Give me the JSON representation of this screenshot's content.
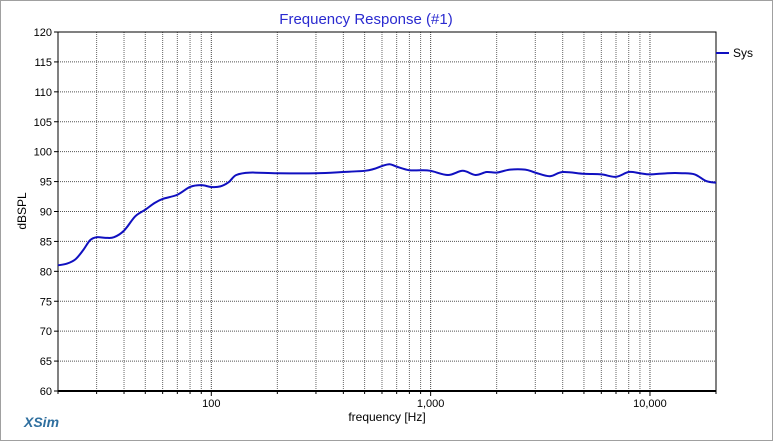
{
  "brand": "XSim",
  "chart_data": {
    "type": "line",
    "title": "Frequency Response (#1)",
    "xlabel": "frequency [Hz]",
    "ylabel": "dBSPL",
    "x_scale": "log",
    "xlim": [
      20,
      20000
    ],
    "ylim": [
      60,
      120
    ],
    "y_ticks": [
      60,
      65,
      70,
      75,
      80,
      85,
      90,
      95,
      100,
      105,
      110,
      115,
      120
    ],
    "y_tick_labels": [
      "60",
      "65",
      "70",
      "75",
      "80",
      "85",
      "90",
      "95",
      "100",
      "105",
      "110",
      "115",
      "120"
    ],
    "x_ticks": [
      100,
      1000,
      10000
    ],
    "x_tick_labels": [
      "100",
      "1,000",
      "10,000"
    ],
    "grid": true,
    "legend_position": "top-right",
    "colors": {
      "series": "#1010c0",
      "title": "#2a2ad0",
      "brand": "#2f6f9f"
    },
    "series": [
      {
        "name": "Sys",
        "x": [
          20,
          22,
          24,
          26,
          28,
          30,
          33,
          36,
          40,
          45,
          50,
          55,
          60,
          70,
          80,
          90,
          100,
          110,
          120,
          130,
          150,
          200,
          300,
          400,
          500,
          550,
          600,
          650,
          700,
          800,
          900,
          1000,
          1200,
          1400,
          1600,
          1800,
          2000,
          2300,
          2700,
          3000,
          3500,
          4000,
          5000,
          6000,
          7000,
          8000,
          9000,
          10000,
          12000,
          14000,
          16000,
          18000,
          20000
        ],
        "y": [
          81.0,
          81.3,
          82.0,
          83.5,
          85.2,
          85.7,
          85.6,
          85.7,
          86.8,
          89.2,
          90.3,
          91.4,
          92.1,
          92.8,
          94.1,
          94.4,
          94.1,
          94.2,
          94.9,
          96.1,
          96.5,
          96.4,
          96.4,
          96.6,
          96.8,
          97.1,
          97.6,
          97.9,
          97.5,
          96.9,
          96.9,
          96.8,
          96.1,
          96.8,
          96.1,
          96.6,
          96.5,
          97.0,
          97.0,
          96.5,
          95.9,
          96.6,
          96.3,
          96.2,
          95.8,
          96.6,
          96.4,
          96.2,
          96.4,
          96.4,
          96.2,
          95.1,
          94.8
        ]
      }
    ]
  }
}
